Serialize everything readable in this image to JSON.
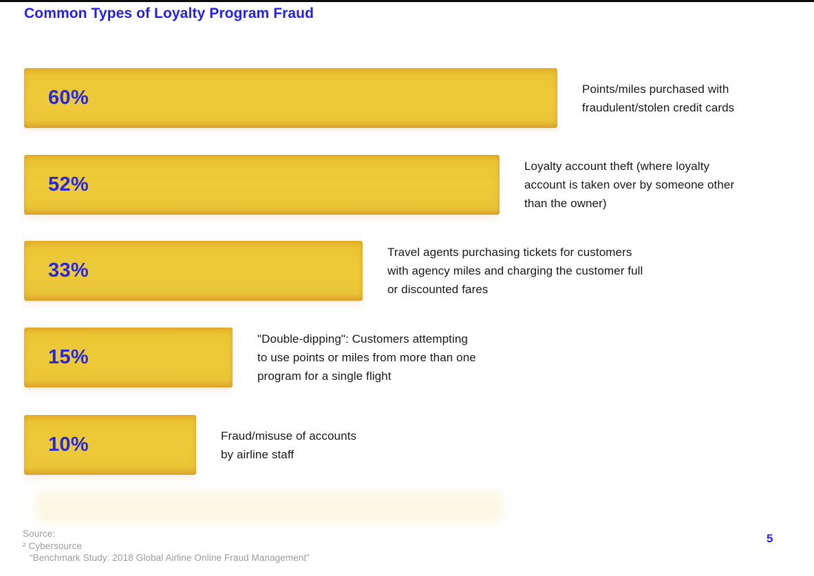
{
  "page": {
    "title": "Common Types of Loyalty Program Fraud",
    "page_number": "5"
  },
  "source": {
    "label": "Source:",
    "line1": "² Cybersource",
    "line2": "“Benchmark Study: 2018 Global Airline Online Fraud Management”"
  },
  "colors": {
    "bar_yellow": "#EBC734",
    "accent_blue": "#2220EA",
    "value_blue": "#2A28D6",
    "body_text": "#171717",
    "muted_text": "#9B9B9B"
  },
  "chart_data": {
    "type": "bar",
    "orientation": "horizontal",
    "title": "Common Types of Loyalty Program Fraud",
    "xlabel": "",
    "ylabel": "",
    "xlim": [
      0,
      100
    ],
    "grid": false,
    "legend": false,
    "bar_color": "#EBC734",
    "categories": [
      "Points/miles purchased with fraudulent/stolen credit cards",
      "Loyalty account theft (where loyalty account is taken over by someone other than the owner)",
      "Travel agents purchasing tickets for customers with agency miles and charging the customer full or discounted fares",
      "\"Double-dipping\": Customers attempting to use points or miles from more than one program for a single flight",
      "Fraud/misuse of accounts by airline staff"
    ],
    "values": [
      60,
      52,
      33,
      15,
      10
    ],
    "items": [
      {
        "value": 60,
        "label": "60%",
        "description": "Points/miles purchased with\nfraudulent/stolen credit cards"
      },
      {
        "value": 52,
        "label": "52%",
        "description": "Loyalty account theft (where loyalty\naccount is taken over by someone other\nthan the owner)"
      },
      {
        "value": 33,
        "label": "33%",
        "description": "Travel agents purchasing tickets for customers\nwith agency miles and charging the customer full\nor discounted fares"
      },
      {
        "value": 15,
        "label": "15%",
        "description": "\"Double-dipping\": Customers attempting\nto use points or miles from more than one\nprogram for a single flight"
      },
      {
        "value": 10,
        "label": "10%",
        "description": "Fraud/misuse of accounts\nby airline staff"
      }
    ]
  }
}
